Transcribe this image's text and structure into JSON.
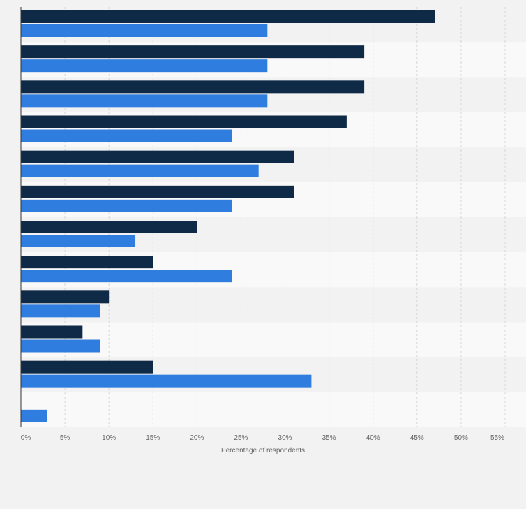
{
  "chart_data": {
    "type": "bar",
    "orientation": "horizontal",
    "xlabel": "Percentage of respondents",
    "ylabel": "",
    "xlim": [
      0,
      55
    ],
    "x_ticks": [
      "0%",
      "5%",
      "10%",
      "15%",
      "20%",
      "25%",
      "30%",
      "35%",
      "40%",
      "45%",
      "50%",
      "55%"
    ],
    "grid": true,
    "legend": "none",
    "series": [
      {
        "color": "#0f2a47",
        "values": [
          47,
          39,
          39,
          37,
          31,
          31,
          20,
          15,
          10,
          7,
          15,
          0
        ]
      },
      {
        "color": "#2f7ddf",
        "values": [
          28,
          28,
          28,
          24,
          27,
          24,
          13,
          24,
          9,
          9,
          33,
          3
        ]
      }
    ]
  }
}
